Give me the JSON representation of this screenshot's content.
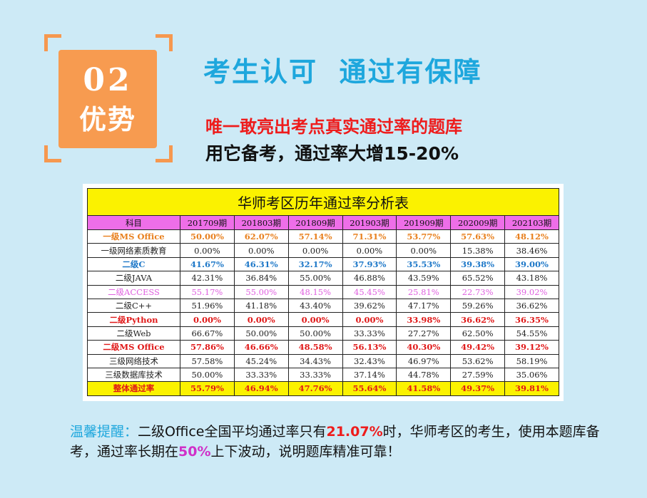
{
  "badge": {
    "number": "02",
    "word": "优势"
  },
  "headline": "考生认可  通过有保障",
  "subheadline1": "唯一敢亮出考点真实通过率的题库",
  "subheadline2": "用它备考，通过率大增15-20%",
  "table": {
    "title": "华师考区历年通过率分析表",
    "headers": [
      "科目",
      "201709期",
      "201803期",
      "201809期",
      "201903期",
      "201909期",
      "202009期",
      "202103期"
    ],
    "rows": [
      {
        "subject": "一级MS Office",
        "color": "#e8801e",
        "bold": true,
        "values": [
          "50.00%",
          "62.07%",
          "57.14%",
          "71.31%",
          "53.77%",
          "57.63%",
          "48.12%"
        ]
      },
      {
        "subject": "一级网络素质教育",
        "color": "#222222",
        "bold": false,
        "values": [
          "0.00%",
          "0.00%",
          "0.00%",
          "0.00%",
          "0.00%",
          "15.38%",
          "38.46%"
        ]
      },
      {
        "subject": "二级C",
        "color": "#1e78c8",
        "bold": true,
        "values": [
          "41.67%",
          "46.31%",
          "32.17%",
          "37.93%",
          "35.53%",
          "39.38%",
          "39.00%"
        ]
      },
      {
        "subject": "二级JAVA",
        "color": "#222222",
        "bold": false,
        "values": [
          "42.31%",
          "36.84%",
          "55.00%",
          "46.88%",
          "43.59%",
          "65.52%",
          "43.18%"
        ]
      },
      {
        "subject": "二级ACCESS",
        "color": "#e060e0",
        "bold": false,
        "values": [
          "55.17%",
          "55.00%",
          "48.15%",
          "45.45%",
          "25.81%",
          "22.73%",
          "39.02%"
        ]
      },
      {
        "subject": "二级C++",
        "color": "#222222",
        "bold": false,
        "values": [
          "51.96%",
          "41.18%",
          "43.40%",
          "39.62%",
          "47.17%",
          "59.26%",
          "36.62%"
        ]
      },
      {
        "subject": "二级Python",
        "color": "#e01818",
        "bold": true,
        "values": [
          "0.00%",
          "0.00%",
          "0.00%",
          "0.00%",
          "33.98%",
          "36.62%",
          "36.35%"
        ]
      },
      {
        "subject": "二级Web",
        "color": "#222222",
        "bold": false,
        "values": [
          "66.67%",
          "50.00%",
          "50.00%",
          "33.33%",
          "27.27%",
          "62.50%",
          "54.55%"
        ]
      },
      {
        "subject": "二级MS Office",
        "color": "#e01818",
        "bold": true,
        "values": [
          "57.86%",
          "46.66%",
          "48.58%",
          "56.13%",
          "40.30%",
          "49.42%",
          "39.12%"
        ]
      },
      {
        "subject": "三级网络技术",
        "color": "#222222",
        "bold": false,
        "values": [
          "57.58%",
          "45.24%",
          "34.43%",
          "32.43%",
          "46.97%",
          "53.62%",
          "58.19%"
        ]
      },
      {
        "subject": "三级数据库技术",
        "color": "#222222",
        "bold": false,
        "values": [
          "50.00%",
          "33.33%",
          "33.33%",
          "37.14%",
          "44.78%",
          "27.59%",
          "35.06%"
        ]
      },
      {
        "subject": "整体通过率",
        "color": "#e01818",
        "bold": true,
        "total": true,
        "values": [
          "55.79%",
          "46.94%",
          "47.76%",
          "55.64%",
          "41.58%",
          "49.37%",
          "39.81%"
        ]
      }
    ]
  },
  "footer": {
    "tip_label": "温馨提醒：",
    "text1": "二级Office全国平均通过率只有",
    "rate": "21.07%",
    "text2": "时，华师考区的考生，使用本题库备考，通过率长期在",
    "pct": "50%",
    "text3": "上下波动，说明题库精准可靠！"
  }
}
